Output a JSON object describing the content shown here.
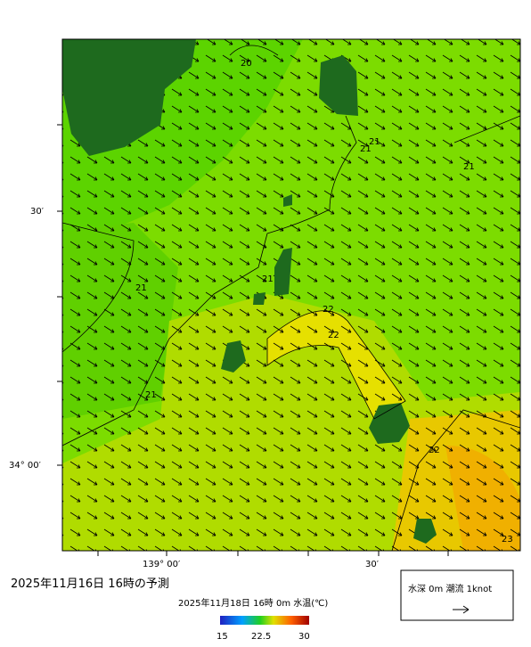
{
  "map": {
    "contour_labels": [
      "20",
      "21",
      "21",
      "21",
      "21",
      "21",
      "21",
      "22",
      "22",
      "22",
      "23"
    ],
    "lat_labels": [
      "30′",
      "34° 00′"
    ],
    "lon_labels": [
      "139° 00′",
      "30′"
    ],
    "forecast_title": "2025年11月16日  16時の予測",
    "colorbar": {
      "title": "2025年11月18日 16時 0m 水温(℃)",
      "labels": [
        "15",
        "22.5",
        "30"
      ]
    },
    "legend": "水深 0m 潮流 1knot"
  }
}
